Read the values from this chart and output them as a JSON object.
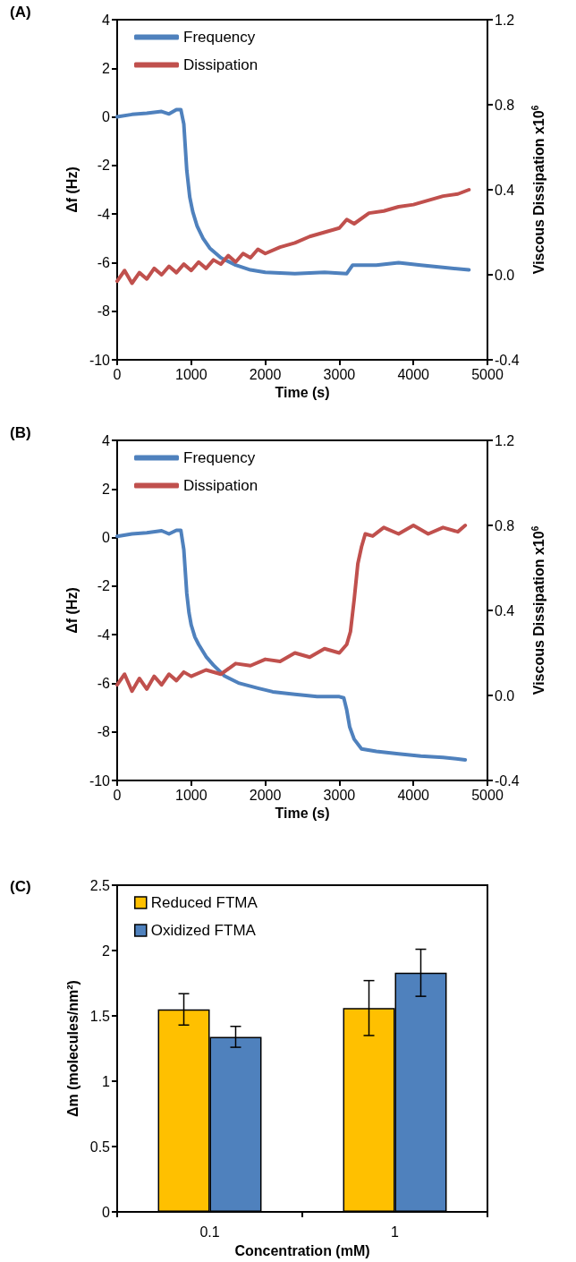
{
  "chart_data": [
    {
      "type": "line",
      "title": "(A)",
      "xlabel": "Time (s)",
      "ylabel": "Δf (Hz)",
      "y2label": "Viscous Dissipation x10$^{6}$",
      "legend": "top left",
      "marker": "none",
      "line_style": "solid",
      "xlim": [
        0,
        5000
      ],
      "xticks": [
        0,
        1000,
        2000,
        3000,
        4000,
        5000
      ],
      "ylim": [
        -10,
        4
      ],
      "yticks": [
        -10,
        -8,
        -6,
        -4,
        -2,
        0,
        2,
        4
      ],
      "y2lim": [
        -0.4,
        1.2
      ],
      "y2ticks": [
        {
          "value": -0.4,
          "label": "-0.4"
        },
        {
          "value": 0,
          "label": "0.0"
        },
        {
          "value": 0.4,
          "label": "0.4"
        },
        {
          "value": 0.8,
          "label": "0.8"
        },
        {
          "value": 1.2,
          "label": "1.2"
        }
      ],
      "series": [
        {
          "name": "Frequency",
          "color": "#4f81bd",
          "x": [
            0,
            200,
            400,
            600,
            700,
            800,
            860,
            900,
            940,
            980,
            1020,
            1080,
            1160,
            1250,
            1400,
            1600,
            1800,
            2000,
            2400,
            2800,
            3100,
            3180,
            3250,
            3500,
            3800,
            4100,
            4400,
            4750
          ],
          "values": [
            0,
            0.1,
            0.15,
            0.22,
            0.12,
            0.3,
            0.3,
            -0.3,
            -2.2,
            -3.3,
            -3.9,
            -4.5,
            -5.0,
            -5.4,
            -5.8,
            -6.1,
            -6.3,
            -6.4,
            -6.45,
            -6.4,
            -6.45,
            -6.1,
            -6.1,
            -6.1,
            -6.0,
            -6.1,
            -6.2,
            -6.3
          ]
        },
        {
          "name": "Dissipation",
          "color": "#c0504d",
          "axis": "y2",
          "x": [
            0,
            100,
            200,
            300,
            400,
            500,
            600,
            700,
            800,
            900,
            1000,
            1100,
            1200,
            1300,
            1400,
            1500,
            1600,
            1700,
            1800,
            1900,
            2000,
            2200,
            2400,
            2600,
            2800,
            3000,
            3100,
            3200,
            3400,
            3600,
            3800,
            4000,
            4200,
            4400,
            4600,
            4750
          ],
          "values": [
            -0.03,
            0.02,
            -0.04,
            0.01,
            -0.02,
            0.03,
            0.0,
            0.04,
            0.01,
            0.05,
            0.02,
            0.06,
            0.03,
            0.07,
            0.05,
            0.09,
            0.06,
            0.1,
            0.08,
            0.12,
            0.1,
            0.13,
            0.15,
            0.18,
            0.2,
            0.22,
            0.26,
            0.24,
            0.29,
            0.3,
            0.32,
            0.33,
            0.35,
            0.37,
            0.38,
            0.4
          ]
        }
      ]
    },
    {
      "type": "line",
      "title": "(B)",
      "xlabel": "Time (s)",
      "ylabel": "Δf (Hz)",
      "y2label": "Viscous Dissipation x10$^{6}$",
      "legend": "top left",
      "marker": "none",
      "line_style": "solid",
      "xlim": [
        0,
        5000
      ],
      "xticks": [
        0,
        1000,
        2000,
        3000,
        4000,
        5000
      ],
      "ylim": [
        -10,
        4
      ],
      "yticks": [
        -10,
        -8,
        -6,
        -4,
        -2,
        0,
        2,
        4
      ],
      "y2lim": [
        -0.4,
        1.2
      ],
      "y2ticks": [
        {
          "value": -0.4,
          "label": "-0.4"
        },
        {
          "value": 0,
          "label": "0.0"
        },
        {
          "value": 0.4,
          "label": "0.4"
        },
        {
          "value": 0.8,
          "label": "0.8"
        },
        {
          "value": 1.2,
          "label": "1.2"
        }
      ],
      "series": [
        {
          "name": "Frequency",
          "color": "#4f81bd",
          "x": [
            0,
            200,
            400,
            600,
            700,
            800,
            860,
            900,
            940,
            970,
            1000,
            1050,
            1100,
            1200,
            1300,
            1450,
            1650,
            1900,
            2100,
            2400,
            2700,
            3000,
            3060,
            3100,
            3140,
            3200,
            3300,
            3500,
            3800,
            4100,
            4400,
            4700
          ],
          "values": [
            0.05,
            0.15,
            0.2,
            0.28,
            0.15,
            0.3,
            0.3,
            -0.5,
            -2.3,
            -3.1,
            -3.6,
            -4.1,
            -4.4,
            -4.9,
            -5.25,
            -5.7,
            -6.0,
            -6.2,
            -6.35,
            -6.45,
            -6.55,
            -6.55,
            -6.6,
            -7.1,
            -7.8,
            -8.3,
            -8.7,
            -8.8,
            -8.9,
            -9.0,
            -9.05,
            -9.15
          ]
        },
        {
          "name": "Dissipation",
          "color": "#c0504d",
          "axis": "y2",
          "x": [
            0,
            100,
            200,
            300,
            400,
            500,
            600,
            700,
            800,
            900,
            1000,
            1200,
            1400,
            1600,
            1800,
            2000,
            2200,
            2400,
            2600,
            2800,
            3000,
            3100,
            3150,
            3200,
            3250,
            3300,
            3350,
            3450,
            3600,
            3800,
            4000,
            4200,
            4400,
            4600,
            4700
          ],
          "values": [
            0.05,
            0.1,
            0.02,
            0.08,
            0.03,
            0.09,
            0.05,
            0.1,
            0.07,
            0.11,
            0.09,
            0.12,
            0.1,
            0.15,
            0.14,
            0.17,
            0.16,
            0.2,
            0.18,
            0.22,
            0.2,
            0.24,
            0.3,
            0.45,
            0.62,
            0.7,
            0.76,
            0.75,
            0.79,
            0.76,
            0.8,
            0.76,
            0.79,
            0.77,
            0.8
          ]
        }
      ]
    },
    {
      "type": "bar",
      "title": "(C)",
      "xlabel": "Concentration (mM)",
      "ylabel": "Δm (molecules/nm²)",
      "legend": "top left",
      "categories": [
        "0.1",
        "1"
      ],
      "ylim": [
        0,
        2.5
      ],
      "yticks": [
        0,
        0.5,
        1,
        1.5,
        2,
        2.5
      ],
      "series": [
        {
          "name": "Reduced FTMA",
          "color": "#ffc000",
          "values": [
            1.55,
            1.56
          ],
          "errors": [
            0.12,
            0.21
          ]
        },
        {
          "name": "Oxidized FTMA",
          "color": "#4f81bd",
          "values": [
            1.34,
            1.83
          ],
          "errors": [
            0.08,
            0.18
          ]
        }
      ]
    }
  ]
}
